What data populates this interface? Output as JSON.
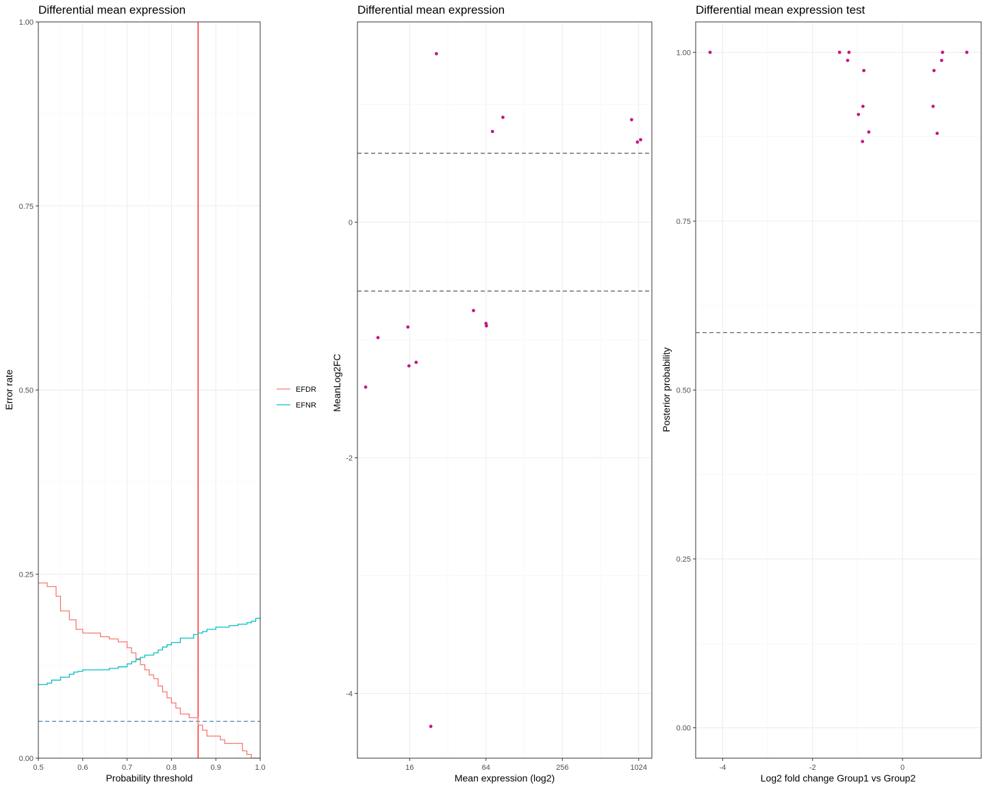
{
  "chart_data": [
    {
      "type": "line",
      "title": "Differential mean expression",
      "xlabel": "Probability threshold",
      "ylabel": "Error rate",
      "xlim": [
        0.5,
        1.0
      ],
      "ylim": [
        0.0,
        1.0
      ],
      "xticks": [
        0.5,
        0.6,
        0.7,
        0.8,
        0.9,
        1.0
      ],
      "xtick_labels": [
        "0.5",
        "0.6",
        "0.7",
        "0.8",
        "0.9",
        "1.0"
      ],
      "yticks": [
        0.0,
        0.25,
        0.5,
        0.75,
        1.0
      ],
      "ytick_labels": [
        "0.00",
        "0.25",
        "0.50",
        "0.75",
        "1.00"
      ],
      "grid": true,
      "legend": "right",
      "series": [
        {
          "name": "EFDR",
          "color": "#F8766D",
          "x": [
            0.5,
            0.52,
            0.54,
            0.55,
            0.57,
            0.585,
            0.6,
            0.64,
            0.66,
            0.68,
            0.7,
            0.71,
            0.72,
            0.73,
            0.74,
            0.75,
            0.76,
            0.77,
            0.78,
            0.79,
            0.8,
            0.81,
            0.82,
            0.84,
            0.86,
            0.87,
            0.88,
            0.91,
            0.92,
            0.96,
            0.97,
            0.98,
            1.0
          ],
          "y": [
            0.238,
            0.233,
            0.22,
            0.2,
            0.188,
            0.175,
            0.17,
            0.165,
            0.162,
            0.158,
            0.15,
            0.143,
            0.135,
            0.127,
            0.12,
            0.113,
            0.108,
            0.098,
            0.09,
            0.082,
            0.075,
            0.068,
            0.06,
            0.055,
            0.045,
            0.038,
            0.03,
            0.025,
            0.02,
            0.01,
            0.005,
            0.0,
            0.0
          ]
        },
        {
          "name": "EFNR",
          "color": "#00BFC4",
          "x": [
            0.5,
            0.52,
            0.53,
            0.55,
            0.57,
            0.58,
            0.59,
            0.6,
            0.66,
            0.68,
            0.7,
            0.71,
            0.72,
            0.73,
            0.74,
            0.76,
            0.77,
            0.78,
            0.79,
            0.8,
            0.82,
            0.85,
            0.86,
            0.87,
            0.88,
            0.9,
            0.93,
            0.95,
            0.97,
            0.98,
            0.99,
            1.0
          ],
          "y": [
            0.1,
            0.102,
            0.106,
            0.11,
            0.114,
            0.117,
            0.118,
            0.12,
            0.122,
            0.124,
            0.128,
            0.131,
            0.134,
            0.137,
            0.14,
            0.143,
            0.147,
            0.151,
            0.154,
            0.157,
            0.163,
            0.168,
            0.17,
            0.172,
            0.175,
            0.178,
            0.18,
            0.182,
            0.184,
            0.186,
            0.19,
            0.191
          ]
        }
      ],
      "vline": {
        "x": 0.86,
        "color": "#FF0000"
      },
      "hline": {
        "y": 0.05,
        "color": "#4682B4",
        "style": "dashed"
      }
    },
    {
      "type": "scatter",
      "title": "Differential mean expression",
      "xlabel": "Mean expression  (log2)",
      "ylabel": "MeanLog2FC",
      "x_scale": "log2",
      "xlim": [
        6.2,
        1300
      ],
      "ylim": [
        -4.55,
        1.7
      ],
      "xticks": [
        16,
        64,
        256,
        1024
      ],
      "xtick_labels": [
        "16",
        "64",
        "256",
        "1024"
      ],
      "yticks": [
        -4,
        -2,
        0
      ],
      "ytick_labels": [
        "-4",
        "-2",
        "0"
      ],
      "grid": true,
      "color": "#C71585",
      "x": [
        7.2,
        9.0,
        15.5,
        15.8,
        18.0,
        23.5,
        26.0,
        51.0,
        64.0,
        64.5,
        72.0,
        87.0,
        900.0,
        1000.0,
        1060.0
      ],
      "y": [
        -1.4,
        -0.98,
        -0.89,
        -1.22,
        -1.19,
        -4.28,
        1.43,
        -0.75,
        -0.86,
        -0.88,
        0.77,
        0.89,
        0.87,
        0.68,
        0.7
      ],
      "hlines": [
        {
          "y": 0.585,
          "color": "#555555",
          "style": "dashed"
        },
        {
          "y": -0.585,
          "color": "#555555",
          "style": "dashed"
        }
      ]
    },
    {
      "type": "scatter",
      "title": "Differential mean expression test",
      "xlabel": "Log2 fold change Group1 vs Group2",
      "ylabel": "Posterior probability",
      "xlim": [
        -4.6,
        1.75
      ],
      "ylim": [
        -0.045,
        1.045
      ],
      "xticks": [
        -4,
        -2,
        0
      ],
      "xtick_labels": [
        "-4",
        "-2",
        "0"
      ],
      "yticks": [
        0.0,
        0.25,
        0.5,
        0.75,
        1.0
      ],
      "ytick_labels": [
        "0.00",
        "0.25",
        "0.50",
        "0.75",
        "1.00"
      ],
      "grid": true,
      "color": "#C71585",
      "x": [
        -4.28,
        -1.4,
        -1.22,
        -1.19,
        -0.98,
        -0.89,
        -0.88,
        -0.86,
        -0.75,
        0.7,
        0.68,
        0.77,
        0.89,
        0.87,
        1.43
      ],
      "y": [
        1.0,
        1.0,
        0.988,
        1.0,
        0.908,
        0.868,
        0.92,
        0.973,
        0.882,
        0.973,
        0.92,
        0.88,
        1.0,
        0.988,
        1.0
      ],
      "hline": {
        "y": 0.585,
        "color": "#555555",
        "style": "dashed"
      }
    }
  ]
}
